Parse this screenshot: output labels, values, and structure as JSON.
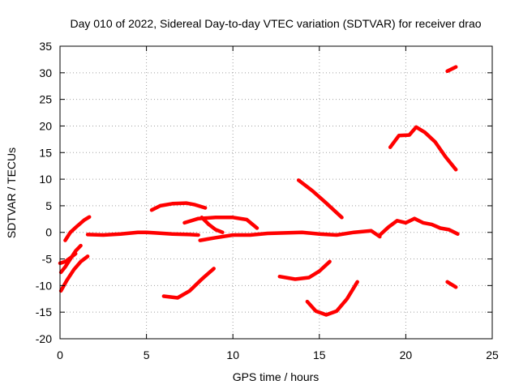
{
  "chart_data": {
    "type": "scatter",
    "title": "Day 010 of 2022, Sidereal Day-to-day VTEC variation (SDTVAR) for receiver drao",
    "xlabel": "GPS time / hours",
    "ylabel": "SDTVAR / TECUs",
    "xlim": [
      0,
      25
    ],
    "ylim": [
      -20,
      35
    ],
    "xticks": [
      0,
      5,
      10,
      15,
      20,
      25
    ],
    "yticks": [
      -20,
      -15,
      -10,
      -5,
      0,
      5,
      10,
      15,
      20,
      25,
      30,
      35
    ],
    "xtick_labels": [
      "0",
      "5",
      "10",
      "15",
      "20",
      "25"
    ],
    "ytick_labels": [
      "-20",
      "-15",
      "-10",
      "-5",
      "0",
      "5",
      "10",
      "15",
      "20",
      "25",
      "30",
      "35"
    ],
    "grid": true,
    "color": "#ff0000",
    "series": [
      {
        "name": "track-1",
        "x": [
          0.05,
          0.4,
          0.8,
          1.2,
          1.6
        ],
        "y": [
          -11,
          -9,
          -7,
          -5.5,
          -4.5
        ]
      },
      {
        "name": "track-2",
        "x": [
          0.05,
          0.3,
          0.6,
          0.9,
          1.2
        ],
        "y": [
          -7.5,
          -6.5,
          -5,
          -3.5,
          -2.5
        ]
      },
      {
        "name": "track-3",
        "x": [
          0.0,
          0.3,
          0.6,
          0.9
        ],
        "y": [
          -5.8,
          -5.5,
          -4.8,
          -4.0
        ]
      },
      {
        "name": "track-4",
        "x": [
          0.3,
          0.6,
          1.0,
          1.4,
          1.7
        ],
        "y": [
          -1.5,
          0.0,
          1.2,
          2.3,
          2.9
        ]
      },
      {
        "name": "track-5",
        "x": [
          1.6,
          2.5,
          3.5,
          4.5,
          5.0,
          5.5,
          6.5,
          7.5,
          8.0
        ],
        "y": [
          -0.4,
          -0.5,
          -0.3,
          0.0,
          0.0,
          -0.1,
          -0.3,
          -0.4,
          -0.5
        ]
      },
      {
        "name": "track-6",
        "x": [
          5.3,
          5.8,
          6.5,
          7.3,
          7.8,
          8.4
        ],
        "y": [
          4.2,
          5.0,
          5.4,
          5.5,
          5.2,
          4.6
        ]
      },
      {
        "name": "track-7",
        "x": [
          7.2,
          8.0,
          9.0,
          10.0,
          10.8,
          11.4
        ],
        "y": [
          1.8,
          2.6,
          2.8,
          2.8,
          2.4,
          0.8
        ]
      },
      {
        "name": "track-8",
        "x": [
          8.2,
          8.6,
          9.0,
          9.4
        ],
        "y": [
          2.8,
          1.5,
          0.5,
          0.0
        ]
      },
      {
        "name": "track-9",
        "x": [
          8.1,
          9.0,
          10.0,
          11.0,
          12.0,
          13.0,
          14.0,
          15.0,
          16.0,
          17.0,
          18.0,
          18.5
        ],
        "y": [
          -1.5,
          -1.0,
          -0.5,
          -0.5,
          -0.2,
          -0.1,
          0.0,
          -0.3,
          -0.5,
          0.0,
          0.3,
          -0.8
        ]
      },
      {
        "name": "track-10",
        "x": [
          6.0,
          6.8,
          7.5,
          8.2,
          8.9
        ],
        "y": [
          -12.0,
          -12.3,
          -11.0,
          -8.8,
          -6.8
        ]
      },
      {
        "name": "track-11",
        "x": [
          13.8,
          14.6,
          15.4,
          16.3
        ],
        "y": [
          9.8,
          7.8,
          5.5,
          2.8
        ]
      },
      {
        "name": "track-12",
        "x": [
          12.7,
          13.6,
          14.4,
          15.0,
          15.6
        ],
        "y": [
          -8.3,
          -8.8,
          -8.5,
          -7.3,
          -5.5
        ]
      },
      {
        "name": "track-13",
        "x": [
          14.3,
          14.8,
          15.4,
          16.0,
          16.6,
          17.2
        ],
        "y": [
          -13.0,
          -14.8,
          -15.5,
          -14.8,
          -12.5,
          -9.3
        ]
      },
      {
        "name": "track-14",
        "x": [
          18.5,
          19.0,
          19.5,
          20.0,
          20.5,
          21.0,
          21.5,
          22.0,
          22.5,
          23.0
        ],
        "y": [
          -0.5,
          1.0,
          2.2,
          1.8,
          2.6,
          1.8,
          1.5,
          0.8,
          0.5,
          -0.3
        ]
      },
      {
        "name": "track-15",
        "x": [
          19.1,
          19.6,
          20.2,
          20.6,
          21.1,
          21.7,
          22.3,
          22.9
        ],
        "y": [
          16.0,
          18.2,
          18.3,
          19.8,
          18.8,
          17.0,
          14.2,
          11.8
        ]
      },
      {
        "name": "track-16",
        "x": [
          22.4,
          22.9
        ],
        "y": [
          30.3,
          31.1
        ]
      },
      {
        "name": "track-17",
        "x": [
          22.4,
          22.9
        ],
        "y": [
          -9.3,
          -10.3
        ]
      }
    ]
  }
}
